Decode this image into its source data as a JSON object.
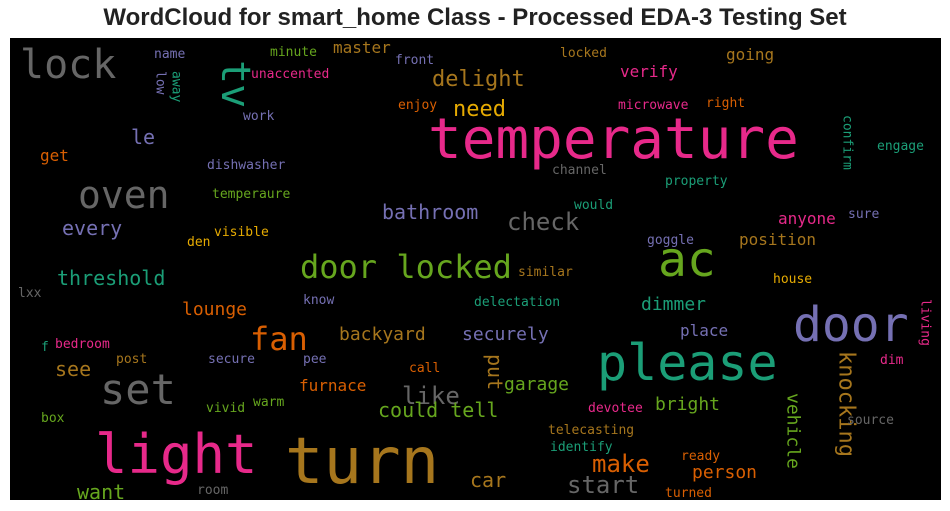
{
  "title": "WordCloud for smart_home Class - Processed EDA-3 Testing Set",
  "chart_data": {
    "type": "wordcloud",
    "title": "WordCloud for smart_home Class - Processed EDA-3 Testing Set",
    "background": "#000000",
    "words": [
      {
        "text": "temperature",
        "size": 56,
        "color": "#e7298a",
        "vertical": false
      },
      {
        "text": "turn",
        "size": 64,
        "color": "#a6761d",
        "vertical": false
      },
      {
        "text": "light",
        "size": 54,
        "color": "#e7298a",
        "vertical": false
      },
      {
        "text": "please",
        "size": 50,
        "color": "#1b9e77",
        "vertical": false
      },
      {
        "text": "door",
        "size": 48,
        "color": "#7570b3",
        "vertical": false
      },
      {
        "text": "ac",
        "size": 48,
        "color": "#66a61e",
        "vertical": false
      },
      {
        "text": "set",
        "size": 42,
        "color": "#666666",
        "vertical": false
      },
      {
        "text": "lock",
        "size": 40,
        "color": "#666666",
        "vertical": false
      },
      {
        "text": "oven",
        "size": 38,
        "color": "#666666",
        "vertical": false
      },
      {
        "text": "tv",
        "size": 40,
        "color": "#1b9e77",
        "vertical": true
      },
      {
        "text": "door locked",
        "size": 32,
        "color": "#66a61e",
        "vertical": false
      },
      {
        "text": "fan",
        "size": 32,
        "color": "#d95f02",
        "vertical": false
      },
      {
        "text": "check",
        "size": 24,
        "color": "#666666",
        "vertical": false
      },
      {
        "text": "like",
        "size": 24,
        "color": "#666666",
        "vertical": false
      },
      {
        "text": "start",
        "size": 24,
        "color": "#666666",
        "vertical": false
      },
      {
        "text": "make",
        "size": 24,
        "color": "#d95f02",
        "vertical": false
      },
      {
        "text": "knocking",
        "size": 22,
        "color": "#a6761d",
        "vertical": true
      },
      {
        "text": "need",
        "size": 22,
        "color": "#e6ab02",
        "vertical": false
      },
      {
        "text": "delight",
        "size": 22,
        "color": "#a6761d",
        "vertical": false
      },
      {
        "text": "bathroom",
        "size": 20,
        "color": "#7570b3",
        "vertical": false
      },
      {
        "text": "threshold",
        "size": 20,
        "color": "#1b9e77",
        "vertical": false
      },
      {
        "text": "every",
        "size": 20,
        "color": "#7570b3",
        "vertical": false
      },
      {
        "text": "could tell",
        "size": 20,
        "color": "#66a61e",
        "vertical": false
      },
      {
        "text": "put",
        "size": 20,
        "color": "#a6761d",
        "vertical": true
      },
      {
        "text": "car",
        "size": 20,
        "color": "#a6761d",
        "vertical": false
      },
      {
        "text": "want",
        "size": 20,
        "color": "#66a61e",
        "vertical": false
      },
      {
        "text": "see",
        "size": 20,
        "color": "#a6761d",
        "vertical": false
      },
      {
        "text": "le",
        "size": 20,
        "color": "#7570b3",
        "vertical": false
      },
      {
        "text": "dimmer",
        "size": 18,
        "color": "#1b9e77",
        "vertical": false
      },
      {
        "text": "securely",
        "size": 18,
        "color": "#7570b3",
        "vertical": false
      },
      {
        "text": "backyard",
        "size": 18,
        "color": "#a6761d",
        "vertical": false
      },
      {
        "text": "lounge",
        "size": 18,
        "color": "#d95f02",
        "vertical": false
      },
      {
        "text": "garage",
        "size": 18,
        "color": "#66a61e",
        "vertical": false
      },
      {
        "text": "bright",
        "size": 18,
        "color": "#66a61e",
        "vertical": false
      },
      {
        "text": "person",
        "size": 18,
        "color": "#d95f02",
        "vertical": false
      },
      {
        "text": "vehicle",
        "size": 18,
        "color": "#66a61e",
        "vertical": true
      },
      {
        "text": "furnace",
        "size": 16,
        "color": "#d95f02",
        "vertical": false
      },
      {
        "text": "place",
        "size": 16,
        "color": "#7570b3",
        "vertical": false
      },
      {
        "text": "position",
        "size": 16,
        "color": "#a6761d",
        "vertical": false
      },
      {
        "text": "anyone",
        "size": 16,
        "color": "#e7298a",
        "vertical": false
      },
      {
        "text": "verify",
        "size": 16,
        "color": "#e7298a",
        "vertical": false
      },
      {
        "text": "going",
        "size": 16,
        "color": "#a6761d",
        "vertical": false
      },
      {
        "text": "master",
        "size": 16,
        "color": "#a6761d",
        "vertical": false
      },
      {
        "text": "get",
        "size": 16,
        "color": "#d95f02",
        "vertical": false
      },
      {
        "text": "confirm",
        "size": 13,
        "color": "#1b9e77",
        "vertical": true
      },
      {
        "text": "engage",
        "size": 13,
        "color": "#1b9e77",
        "vertical": false
      },
      {
        "text": "living",
        "size": 13,
        "color": "#e7298a",
        "vertical": true
      },
      {
        "text": "sure",
        "size": 13,
        "color": "#7570b3",
        "vertical": false
      },
      {
        "text": "house",
        "size": 13,
        "color": "#e6ab02",
        "vertical": false
      },
      {
        "text": "dim",
        "size": 13,
        "color": "#e7298a",
        "vertical": false
      },
      {
        "text": "source",
        "size": 13,
        "color": "#666666",
        "vertical": false
      },
      {
        "text": "ready",
        "size": 13,
        "color": "#d95f02",
        "vertical": false
      },
      {
        "text": "turned",
        "size": 13,
        "color": "#d95f02",
        "vertical": false
      },
      {
        "text": "telecasting",
        "size": 13,
        "color": "#a6761d",
        "vertical": false
      },
      {
        "text": "identify",
        "size": 13,
        "color": "#1b9e77",
        "vertical": false
      },
      {
        "text": "devotee",
        "size": 13,
        "color": "#e7298a",
        "vertical": false
      },
      {
        "text": "call",
        "size": 13,
        "color": "#d95f02",
        "vertical": false
      },
      {
        "text": "room",
        "size": 13,
        "color": "#666666",
        "vertical": false
      },
      {
        "text": "warm",
        "size": 13,
        "color": "#66a61e",
        "vertical": false
      },
      {
        "text": "vivid",
        "size": 13,
        "color": "#66a61e",
        "vertical": false
      },
      {
        "text": "secure",
        "size": 13,
        "color": "#7570b3",
        "vertical": false
      },
      {
        "text": "pee",
        "size": 13,
        "color": "#7570b3",
        "vertical": false
      },
      {
        "text": "post",
        "size": 13,
        "color": "#a6761d",
        "vertical": false
      },
      {
        "text": "bedroom",
        "size": 13,
        "color": "#e7298a",
        "vertical": false
      },
      {
        "text": "box",
        "size": 13,
        "color": "#66a61e",
        "vertical": false
      },
      {
        "text": "f",
        "size": 13,
        "color": "#1b9e77",
        "vertical": false
      },
      {
        "text": "lxx",
        "size": 13,
        "color": "#666666",
        "vertical": false
      },
      {
        "text": "know",
        "size": 13,
        "color": "#7570b3",
        "vertical": false
      },
      {
        "text": "delectation",
        "size": 13,
        "color": "#1b9e77",
        "vertical": false
      },
      {
        "text": "similar",
        "size": 13,
        "color": "#a6761d",
        "vertical": false
      },
      {
        "text": "goggle",
        "size": 13,
        "color": "#7570b3",
        "vertical": false
      },
      {
        "text": "den",
        "size": 13,
        "color": "#e6ab02",
        "vertical": false
      },
      {
        "text": "visible",
        "size": 13,
        "color": "#e6ab02",
        "vertical": false
      },
      {
        "text": "temperaure",
        "size": 13,
        "color": "#66a61e",
        "vertical": false
      },
      {
        "text": "dishwasher",
        "size": 13,
        "color": "#7570b3",
        "vertical": false
      },
      {
        "text": "would",
        "size": 13,
        "color": "#1b9e77",
        "vertical": false
      },
      {
        "text": "channel",
        "size": 13,
        "color": "#666666",
        "vertical": false
      },
      {
        "text": "property",
        "size": 13,
        "color": "#1b9e77",
        "vertical": false
      },
      {
        "text": "work",
        "size": 13,
        "color": "#7570b3",
        "vertical": false
      },
      {
        "text": "enjoy",
        "size": 13,
        "color": "#d95f02",
        "vertical": false
      },
      {
        "text": "microwave",
        "size": 13,
        "color": "#e7298a",
        "vertical": false
      },
      {
        "text": "right",
        "size": 13,
        "color": "#d95f02",
        "vertical": false
      },
      {
        "text": "locked",
        "size": 13,
        "color": "#a6761d",
        "vertical": false
      },
      {
        "text": "front",
        "size": 13,
        "color": "#7570b3",
        "vertical": false
      },
      {
        "text": "minute",
        "size": 13,
        "color": "#66a61e",
        "vertical": false
      },
      {
        "text": "unaccented",
        "size": 13,
        "color": "#e7298a",
        "vertical": false
      },
      {
        "text": "name",
        "size": 13,
        "color": "#7570b3",
        "vertical": false
      },
      {
        "text": "low",
        "size": 13,
        "color": "#7570b3",
        "vertical": true
      },
      {
        "text": "away",
        "size": 13,
        "color": "#1b9e77",
        "vertical": true
      }
    ]
  }
}
